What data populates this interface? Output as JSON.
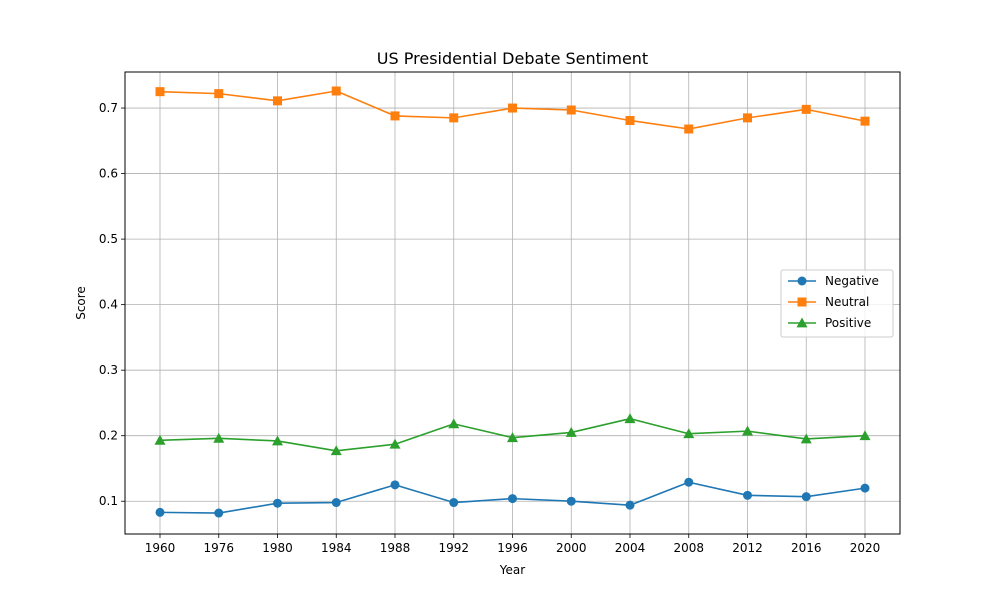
{
  "chart_data": {
    "type": "line",
    "title": "US Presidential Debate Sentiment",
    "xlabel": "Year",
    "ylabel": "Score",
    "categories": [
      "1960",
      "1976",
      "1980",
      "1984",
      "1988",
      "1992",
      "1996",
      "2000",
      "2004",
      "2008",
      "2012",
      "2016",
      "2020"
    ],
    "ylim": [
      0.05,
      0.755
    ],
    "yticks": [
      "0.1",
      "0.2",
      "0.3",
      "0.4",
      "0.5",
      "0.6",
      "0.7"
    ],
    "grid": true,
    "legend_position": "center-right",
    "series": [
      {
        "name": "Negative",
        "color": "#1f77b4",
        "marker": "circle",
        "values": [
          0.083,
          0.082,
          0.097,
          0.098,
          0.125,
          0.098,
          0.104,
          0.1,
          0.094,
          0.129,
          0.109,
          0.107,
          0.12
        ]
      },
      {
        "name": "Neutral",
        "color": "#ff7f0e",
        "marker": "square",
        "values": [
          0.725,
          0.722,
          0.711,
          0.726,
          0.688,
          0.685,
          0.7,
          0.697,
          0.681,
          0.668,
          0.685,
          0.698,
          0.68
        ]
      },
      {
        "name": "Positive",
        "color": "#2ca02c",
        "marker": "triangle",
        "values": [
          0.193,
          0.196,
          0.192,
          0.177,
          0.187,
          0.218,
          0.197,
          0.205,
          0.226,
          0.203,
          0.207,
          0.195,
          0.2
        ]
      }
    ]
  }
}
